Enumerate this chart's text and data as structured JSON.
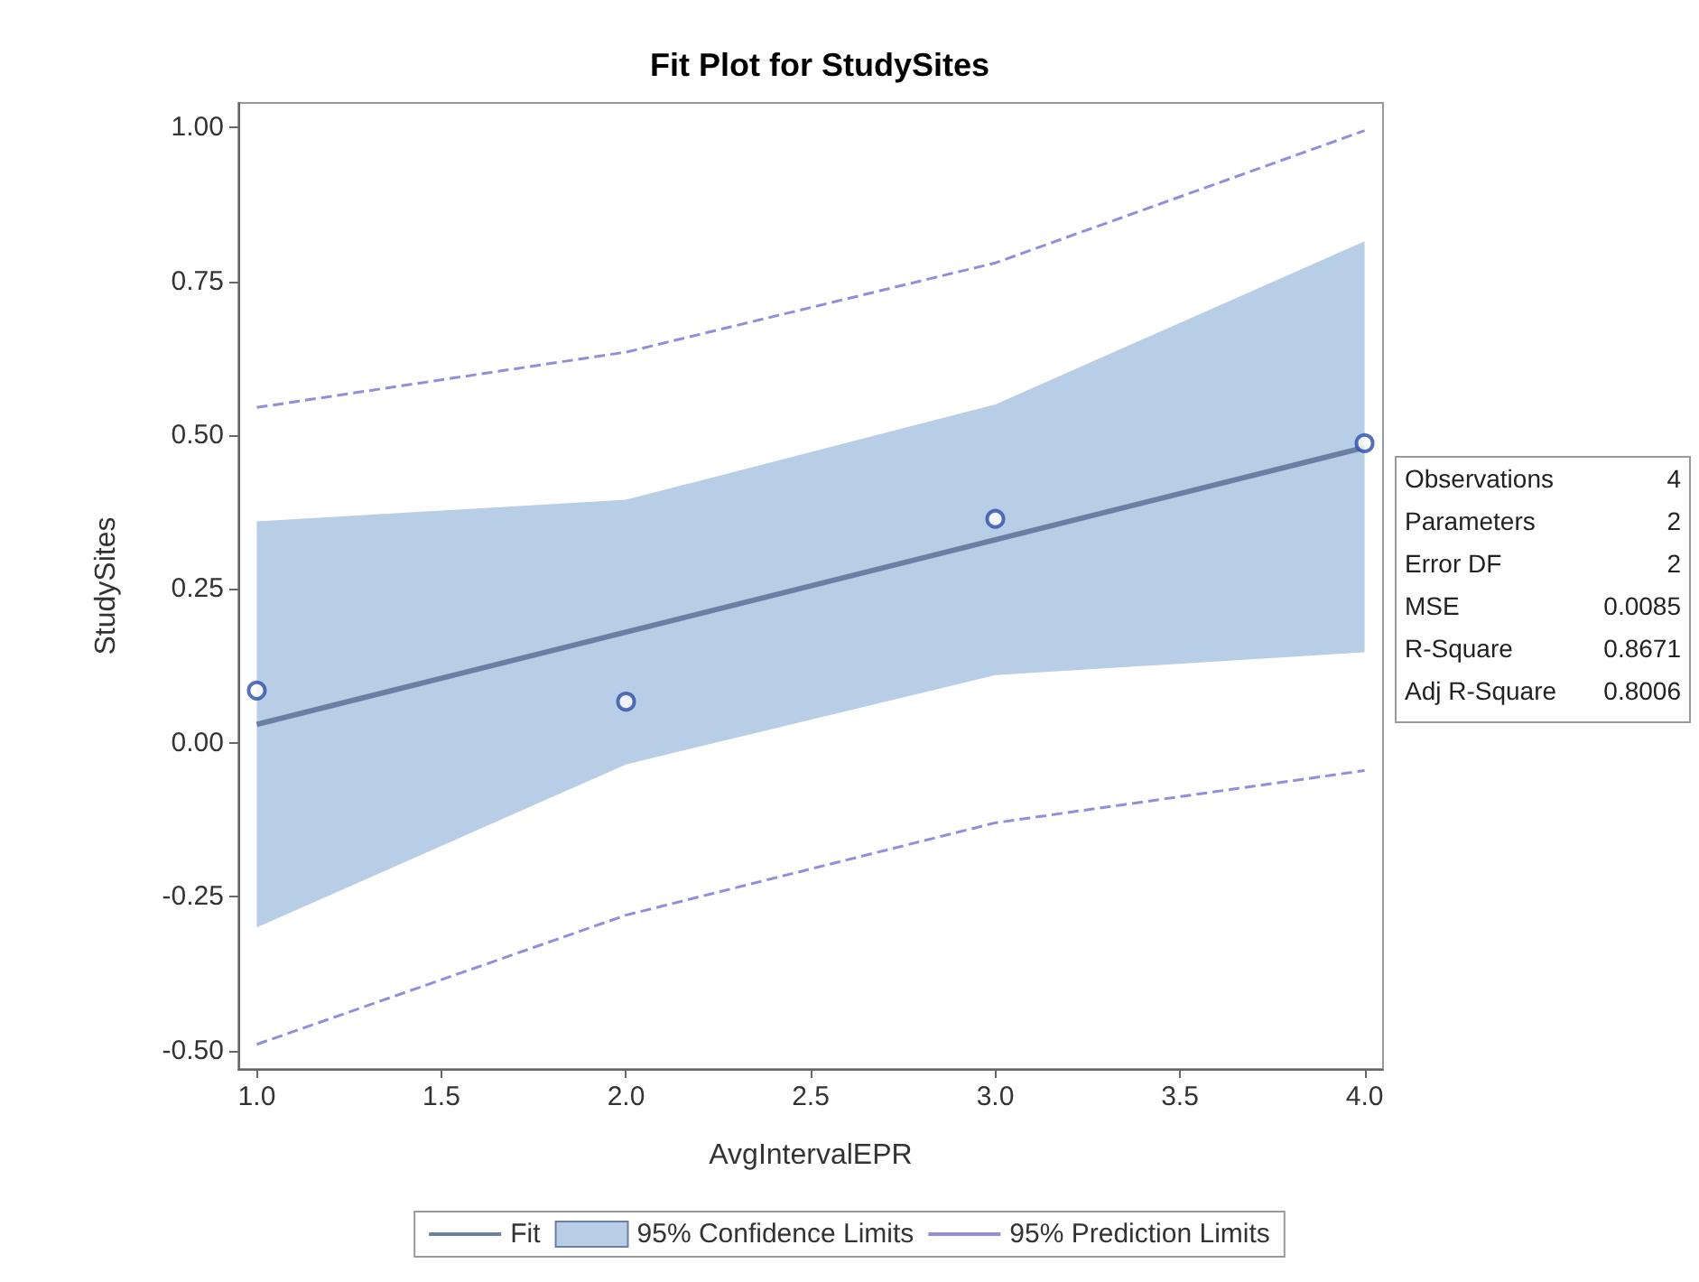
{
  "chart_data": {
    "type": "line",
    "title": "Fit Plot for StudySites",
    "xlabel": "AvgIntervalEPR",
    "ylabel": "StudySites",
    "xlim": [
      0.95,
      4.05
    ],
    "xticks": [
      {
        "value": 1,
        "label": "1.0"
      },
      {
        "value": 1.5,
        "label": "1.5"
      },
      {
        "value": 2,
        "label": "2.0"
      },
      {
        "value": 2.5,
        "label": "2.5"
      },
      {
        "value": 3,
        "label": "3.0"
      },
      {
        "value": 3.5,
        "label": "3.5"
      },
      {
        "value": 4,
        "label": "4.0"
      }
    ],
    "ylim": [
      -0.53,
      1.04
    ],
    "yticks": [
      {
        "value": -0.5,
        "label": "-0.50"
      },
      {
        "value": -0.25,
        "label": "-0.25"
      },
      {
        "value": 0,
        "label": "0.00"
      },
      {
        "value": 0.25,
        "label": "0.25"
      },
      {
        "value": 0.5,
        "label": "0.50"
      },
      {
        "value": 0.75,
        "label": "0.75"
      },
      {
        "value": 1,
        "label": "1.00"
      }
    ],
    "grid": false,
    "legend": "bottom",
    "annotations": [
      "Observations 4",
      "Parameters 2",
      "Error DF 2",
      "MSE 0.0085",
      "R-Square 0.8671",
      "Adj R-Square 0.8006"
    ],
    "series": [
      {
        "name": "Fit",
        "color": "#6a7fa3",
        "line_style": "solid",
        "marker": "none",
        "x": [
          1,
          2,
          3,
          4
        ],
        "values": [
          0.03,
          0.18,
          0.33,
          0.48
        ],
        "lower": [
          -0.3,
          -0.035,
          0.11,
          0.147
        ],
        "upper": [
          0.36,
          0.395,
          0.55,
          0.815
        ]
      },
      {
        "name": "95% Confidence Limits",
        "type": "area",
        "color": "#b8cde6"
      },
      {
        "name": "95% Prediction Limits",
        "color": "#8f8fdc",
        "line_style": "dashed",
        "marker": "none",
        "x": [
          1,
          2,
          3,
          4
        ],
        "values": [
          0.545,
          0.635,
          0.78,
          0.995
        ]
      },
      {
        "color": "#8f8fdc",
        "line_style": "dashed",
        "marker": "none",
        "x": [
          1,
          2,
          3,
          4
        ],
        "values": [
          -0.49,
          -0.28,
          -0.13,
          -0.045
        ]
      },
      {
        "type": "scatter",
        "color": "#2a4ea8",
        "marker": "circle",
        "x": [
          1,
          2,
          3,
          4
        ],
        "values": [
          0.085,
          0.067,
          0.364,
          0.487
        ]
      }
    ]
  }
}
